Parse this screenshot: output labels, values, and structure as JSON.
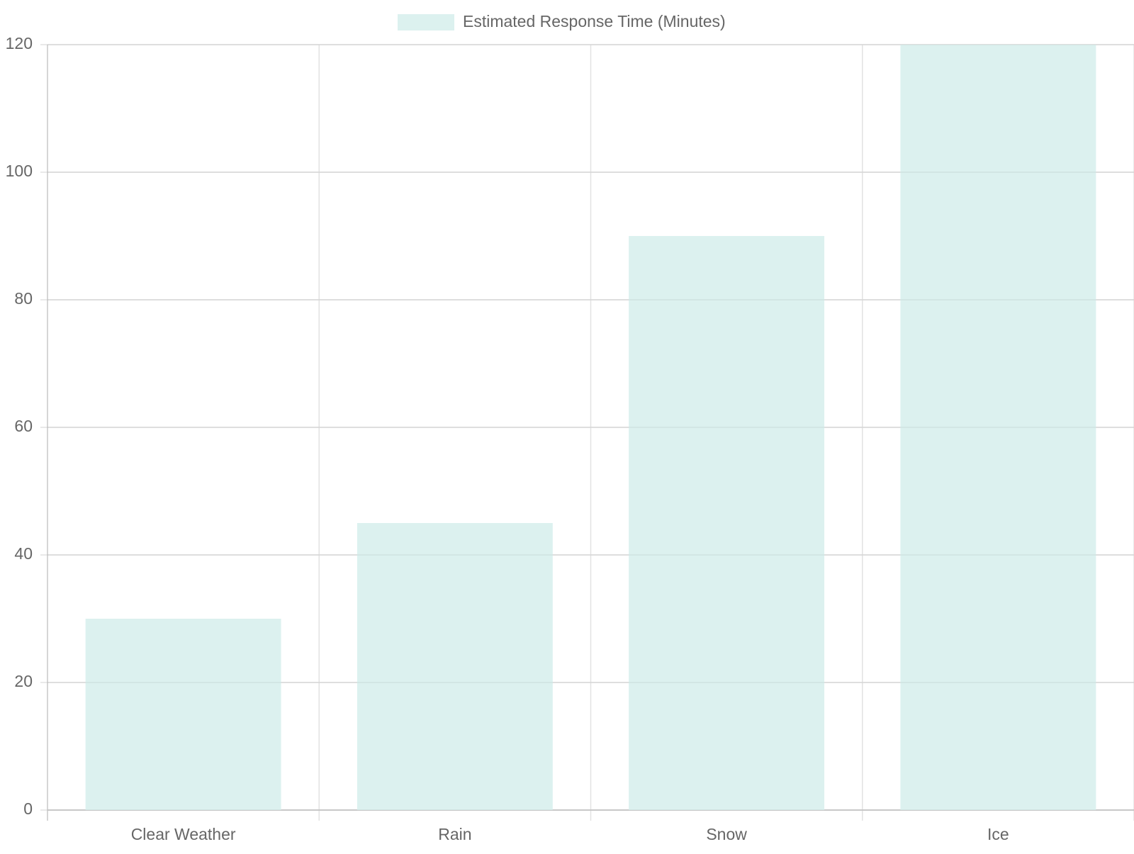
{
  "chart_data": {
    "type": "bar",
    "categories": [
      "Clear Weather",
      "Rain",
      "Snow",
      "Ice"
    ],
    "series": [
      {
        "name": "Estimated Response Time (Minutes)",
        "color": "#dcf1ef",
        "values": [
          30,
          45,
          90,
          120
        ]
      }
    ],
    "ylim": [
      0,
      120
    ],
    "yticks": [
      0,
      20,
      40,
      60,
      80,
      100,
      120
    ],
    "grid": true,
    "legend": "top"
  }
}
